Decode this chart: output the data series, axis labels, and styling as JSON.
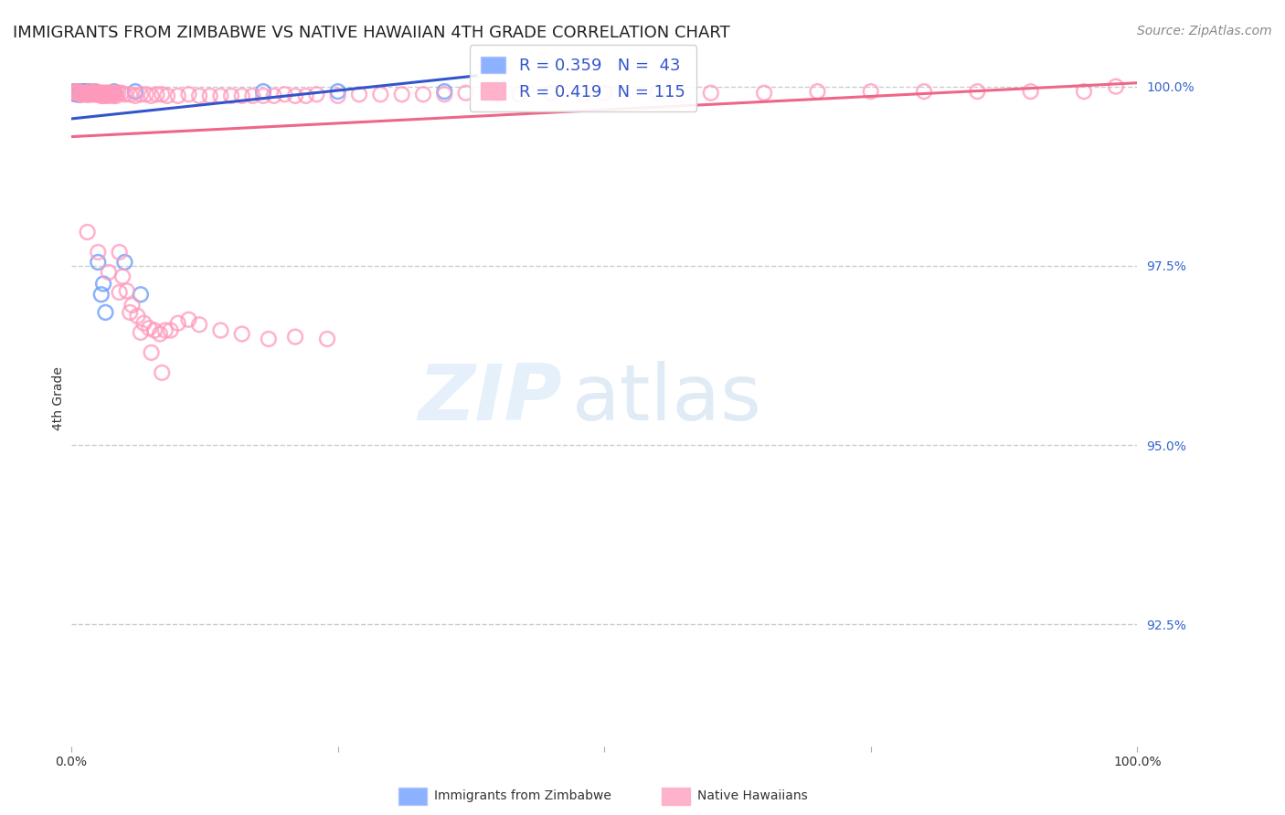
{
  "title": "IMMIGRANTS FROM ZIMBABWE VS NATIVE HAWAIIAN 4TH GRADE CORRELATION CHART",
  "source": "Source: ZipAtlas.com",
  "ylabel": "4th Grade",
  "ylabel_right_labels": [
    "100.0%",
    "97.5%",
    "95.0%",
    "92.5%"
  ],
  "ylabel_right_values": [
    1.0,
    0.975,
    0.95,
    0.925
  ],
  "xlim": [
    0.0,
    1.0
  ],
  "ylim": [
    0.908,
    1.005
  ],
  "legend_r1": "R = 0.359",
  "legend_n1": "N =  43",
  "legend_r2": "R = 0.419",
  "legend_n2": "N = 115",
  "blue_color": "#6699ff",
  "pink_color": "#ff99bb",
  "blue_line_color": "#3355cc",
  "pink_line_color": "#ee6688",
  "background_color": "#ffffff",
  "grid_color": "#cccccc",
  "blue_scatter_x": [
    0.002,
    0.003,
    0.003,
    0.003,
    0.004,
    0.004,
    0.004,
    0.005,
    0.005,
    0.005,
    0.006,
    0.006,
    0.007,
    0.007,
    0.008,
    0.008,
    0.008,
    0.009,
    0.009,
    0.01,
    0.01,
    0.011,
    0.011,
    0.012,
    0.013,
    0.014,
    0.015,
    0.015,
    0.016,
    0.017,
    0.02,
    0.022,
    0.025,
    0.028,
    0.03,
    0.032,
    0.04,
    0.05,
    0.06,
    0.065,
    0.18,
    0.25,
    0.35
  ],
  "blue_scatter_y": [
    0.9993,
    0.9992,
    0.9991,
    0.999,
    0.9992,
    0.9991,
    0.999,
    0.9993,
    0.9991,
    0.9989,
    0.9993,
    0.9991,
    0.9993,
    0.9989,
    0.9993,
    0.9991,
    0.9989,
    0.9993,
    0.9989,
    0.9993,
    0.9991,
    0.9993,
    0.9991,
    0.9991,
    0.9991,
    0.9993,
    0.9991,
    0.9989,
    0.9991,
    0.9993,
    0.9991,
    0.9993,
    0.9755,
    0.971,
    0.9725,
    0.9685,
    0.9993,
    0.9755,
    0.9993,
    0.971,
    0.9993,
    0.9993,
    0.9993
  ],
  "pink_scatter_x": [
    0.003,
    0.005,
    0.007,
    0.009,
    0.011,
    0.013,
    0.015,
    0.017,
    0.019,
    0.021,
    0.023,
    0.025,
    0.027,
    0.029,
    0.031,
    0.033,
    0.035,
    0.037,
    0.039,
    0.041,
    0.044,
    0.047,
    0.05,
    0.055,
    0.06,
    0.065,
    0.07,
    0.075,
    0.08,
    0.085,
    0.09,
    0.1,
    0.11,
    0.12,
    0.13,
    0.14,
    0.15,
    0.16,
    0.17,
    0.18,
    0.19,
    0.2,
    0.21,
    0.22,
    0.23,
    0.25,
    0.27,
    0.29,
    0.31,
    0.33,
    0.35,
    0.37,
    0.4,
    0.42,
    0.45,
    0.48,
    0.5,
    0.55,
    0.6,
    0.65,
    0.7,
    0.75,
    0.8,
    0.85,
    0.9,
    0.95,
    0.98,
    0.004,
    0.006,
    0.008,
    0.01,
    0.012,
    0.014,
    0.016,
    0.018,
    0.02,
    0.022,
    0.024,
    0.026,
    0.028,
    0.03,
    0.032,
    0.034,
    0.036,
    0.038,
    0.04,
    0.042,
    0.045,
    0.048,
    0.052,
    0.057,
    0.062,
    0.068,
    0.073,
    0.078,
    0.083,
    0.088,
    0.093,
    0.1,
    0.11,
    0.12,
    0.14,
    0.16,
    0.185,
    0.21,
    0.24,
    0.005,
    0.015,
    0.025,
    0.035,
    0.045,
    0.055,
    0.065,
    0.075,
    0.085
  ],
  "pink_scatter_y": [
    0.9993,
    0.9991,
    0.9993,
    0.9991,
    0.9991,
    0.9991,
    0.9989,
    0.9993,
    0.9991,
    0.9991,
    0.9993,
    0.9991,
    0.9991,
    0.9991,
    0.9991,
    0.9991,
    0.9991,
    0.9991,
    0.9991,
    0.9991,
    0.9991,
    0.9991,
    0.9989,
    0.9989,
    0.9987,
    0.9989,
    0.9989,
    0.9987,
    0.9989,
    0.9989,
    0.9987,
    0.9987,
    0.9989,
    0.9987,
    0.9987,
    0.9987,
    0.9987,
    0.9987,
    0.9987,
    0.9987,
    0.9987,
    0.9989,
    0.9987,
    0.9987,
    0.9989,
    0.9987,
    0.9989,
    0.9989,
    0.9989,
    0.9989,
    0.9989,
    0.9991,
    0.9989,
    0.9989,
    0.9991,
    0.9989,
    0.9991,
    0.9991,
    0.9991,
    0.9991,
    0.9993,
    0.9993,
    0.9993,
    0.9993,
    0.9993,
    0.9993,
    1.0,
    0.9991,
    0.9991,
    0.9989,
    0.9989,
    0.9989,
    0.9989,
    0.9989,
    0.9989,
    0.9989,
    0.9989,
    0.9989,
    0.9989,
    0.9987,
    0.9987,
    0.9987,
    0.9989,
    0.9987,
    0.9989,
    0.9987,
    0.9987,
    0.9769,
    0.9735,
    0.9715,
    0.9695,
    0.968,
    0.967,
    0.9663,
    0.966,
    0.9655,
    0.966,
    0.966,
    0.967,
    0.9675,
    0.9668,
    0.966,
    0.9655,
    0.9648,
    0.9651,
    0.9648,
    0.9991,
    0.9797,
    0.9769,
    0.9741,
    0.9713,
    0.9685,
    0.9657,
    0.9629,
    0.9601
  ],
  "blue_line_x": [
    0.0,
    0.38
  ],
  "blue_line_y": [
    0.9955,
    1.0015
  ],
  "pink_line_x": [
    0.0,
    1.0
  ],
  "pink_line_y": [
    0.993,
    1.0005
  ],
  "title_fontsize": 13,
  "axis_label_fontsize": 10,
  "tick_fontsize": 10,
  "legend_fontsize": 13,
  "source_fontsize": 10
}
